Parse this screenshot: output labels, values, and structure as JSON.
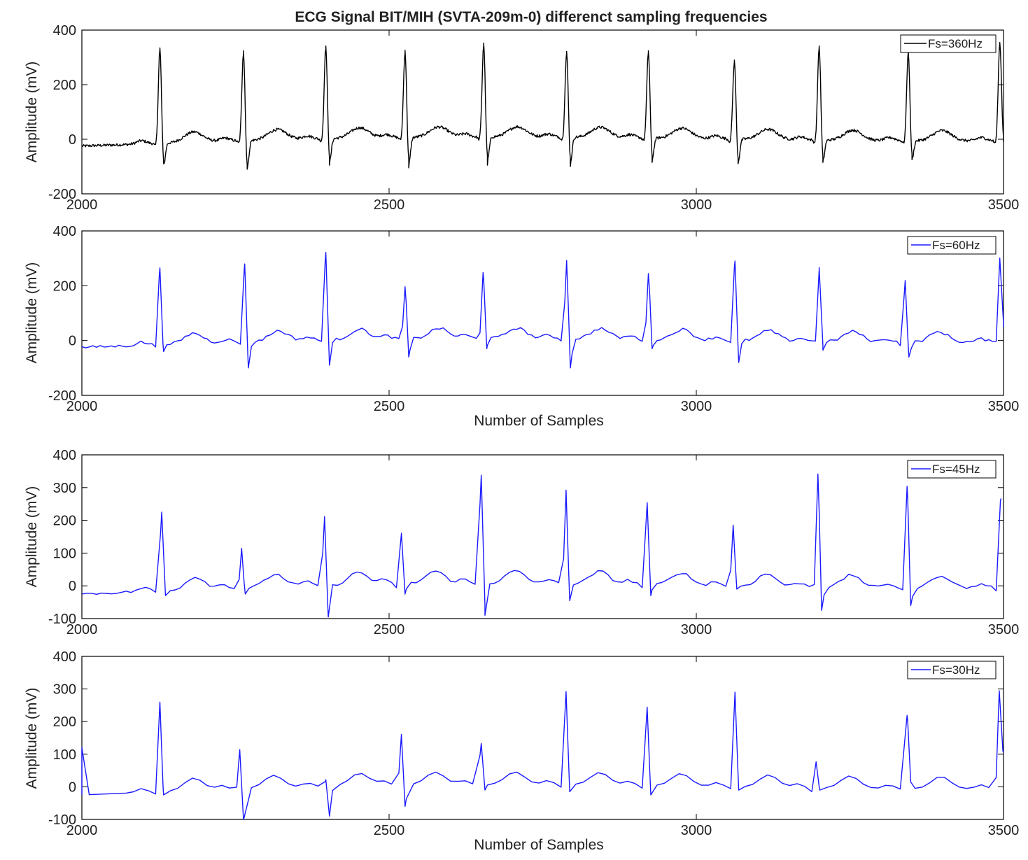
{
  "figure": {
    "title": "ECG Signal BIT/MIH (SVTA-209m-0) differenct sampling frequencies"
  },
  "style": {
    "axis_color": "#000000",
    "series_colors": {
      "Fs=360Hz": "#000000",
      "Fs=60Hz": "#1a1aff",
      "Fs=45Hz": "#1a1aff",
      "Fs=30Hz": "#1a1aff"
    }
  },
  "chart_data": [
    {
      "type": "line",
      "ylabel": "Amplitude (mV)",
      "xlabel": "",
      "xlim": [
        2000,
        3500
      ],
      "ylim": [
        -200,
        400
      ],
      "xticks": [
        2000,
        2500,
        3000,
        3500
      ],
      "yticks": [
        -200,
        0,
        200,
        400
      ],
      "legend": "top-right",
      "grid": false,
      "series": [
        {
          "name": "Fs=360Hz",
          "step": 1,
          "noise": 5,
          "beats": [
            {
              "x": 2127,
              "r": 350,
              "s": -90
            },
            {
              "x": 2263,
              "r": 330,
              "s": -110
            },
            {
              "x": 2397,
              "r": 340,
              "s": -95
            },
            {
              "x": 2526,
              "r": 320,
              "s": -105
            },
            {
              "x": 2654,
              "r": 345,
              "s": -95
            },
            {
              "x": 2789,
              "r": 315,
              "s": -100
            },
            {
              "x": 2922,
              "r": 320,
              "s": -85
            },
            {
              "x": 3062,
              "r": 290,
              "s": -90
            },
            {
              "x": 3200,
              "r": 345,
              "s": -85
            },
            {
              "x": 3345,
              "r": 330,
              "s": -75
            },
            {
              "x": 3494,
              "r": 360,
              "s": -10
            }
          ]
        }
      ]
    },
    {
      "type": "line",
      "ylabel": "Amplitude (mV)",
      "xlabel": "Number of Samples",
      "xlim": [
        2000,
        3500
      ],
      "ylim": [
        -200,
        400
      ],
      "xticks": [
        2000,
        2500,
        3000,
        3500
      ],
      "yticks": [
        -200,
        0,
        200,
        400
      ],
      "legend": "top-right",
      "grid": false,
      "series": [
        {
          "name": "Fs=60Hz",
          "step": 6,
          "noise": 5,
          "beats": [
            {
              "x": 2127,
              "r": 280,
              "s": -40
            },
            {
              "x": 2265,
              "r": 285,
              "s": -100
            },
            {
              "x": 2397,
              "r": 320,
              "s": -90
            },
            {
              "x": 2526,
              "r": 190,
              "s": -60
            },
            {
              "x": 2653,
              "r": 240,
              "s": -30
            },
            {
              "x": 2789,
              "r": 285,
              "s": -100
            },
            {
              "x": 2922,
              "r": 240,
              "s": -30
            },
            {
              "x": 3063,
              "r": 290,
              "s": -80
            },
            {
              "x": 3200,
              "r": 270,
              "s": -35
            },
            {
              "x": 3340,
              "r": 225,
              "s": -60
            },
            {
              "x": 3494,
              "r": 305,
              "s": 50
            }
          ]
        }
      ]
    },
    {
      "type": "line",
      "ylabel": "Amplitude (mV)",
      "xlabel": "",
      "xlim": [
        2000,
        3500
      ],
      "ylim": [
        -100,
        400
      ],
      "xticks": [
        2000,
        2500,
        3000,
        3500
      ],
      "yticks": [
        -100,
        0,
        100,
        200,
        300,
        400
      ],
      "legend": "top-right",
      "grid": false,
      "series": [
        {
          "name": "Fs=45Hz",
          "step": 8,
          "noise": 4,
          "beats": [
            {
              "x": 2130,
              "r": 240,
              "s": -30
            },
            {
              "x": 2260,
              "r": 120,
              "s": -25
            },
            {
              "x": 2395,
              "r": 210,
              "s": -95
            },
            {
              "x": 2520,
              "r": 155,
              "s": -25
            },
            {
              "x": 2650,
              "r": 330,
              "s": -90
            },
            {
              "x": 2788,
              "r": 285,
              "s": -45
            },
            {
              "x": 2920,
              "r": 250,
              "s": -30
            },
            {
              "x": 3060,
              "r": 185,
              "s": -10
            },
            {
              "x": 3198,
              "r": 345,
              "s": -75
            },
            {
              "x": 3343,
              "r": 310,
              "s": -60
            },
            {
              "x": 3495,
              "r": 265,
              "s": 150
            }
          ]
        }
      ]
    },
    {
      "type": "line",
      "ylabel": "Amplitude (mV)",
      "xlabel": "Number of Samples",
      "xlim": [
        2000,
        3500
      ],
      "ylim": [
        -100,
        400
      ],
      "xticks": [
        2000,
        2500,
        3000,
        3500
      ],
      "yticks": [
        -100,
        0,
        100,
        200,
        300,
        400
      ],
      "legend": "top-right",
      "grid": false,
      "series": [
        {
          "name": "Fs=30Hz",
          "step": 12,
          "noise": 0,
          "start": 120,
          "beats": [
            {
              "x": 2127,
              "r": 275,
              "s": -25
            },
            {
              "x": 2257,
              "r": 120,
              "s": -100
            },
            {
              "x": 2397,
              "r": 20,
              "s": -90
            },
            {
              "x": 2520,
              "r": 155,
              "s": -60
            },
            {
              "x": 2650,
              "r": 125,
              "s": -10
            },
            {
              "x": 2788,
              "r": 285,
              "s": -15
            },
            {
              "x": 2920,
              "r": 240,
              "s": -25
            },
            {
              "x": 3063,
              "r": 290,
              "s": -10
            },
            {
              "x": 3195,
              "r": 80,
              "s": -10
            },
            {
              "x": 3343,
              "r": 225,
              "s": 15
            },
            {
              "x": 3493,
              "r": 300,
              "s": 110
            }
          ]
        }
      ]
    }
  ]
}
